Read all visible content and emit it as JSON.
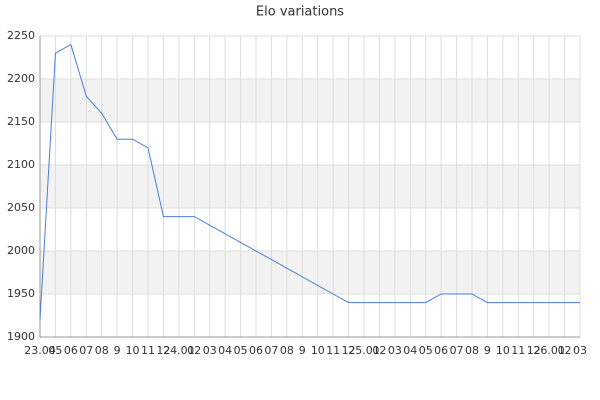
{
  "chart_data": {
    "type": "line",
    "title": "Elo variations",
    "categories": [
      "23.04",
      "05",
      "06",
      "07",
      "08",
      "9",
      "10",
      "11",
      "12",
      "24.01",
      "02",
      "03",
      "04",
      "05",
      "06",
      "07",
      "08",
      "9",
      "10",
      "11",
      "12",
      "25.01",
      "02",
      "03",
      "04",
      "05",
      "06",
      "07",
      "08",
      "9",
      "10",
      "11",
      "12",
      "26.01",
      "02",
      "03"
    ],
    "series": [
      {
        "name": "Elo",
        "color": "#4a7fd6",
        "values": [
          1920,
          2230,
          2240,
          2180,
          2160,
          2130,
          2130,
          2120,
          2040,
          2040,
          2040,
          2030,
          2020,
          2010,
          2000,
          1990,
          1980,
          1970,
          1960,
          1950,
          1940,
          1940,
          1940,
          1940,
          1940,
          1940,
          1950,
          1950,
          1950,
          1940,
          1940,
          1940,
          1940,
          1940,
          1940,
          1940
        ]
      }
    ],
    "ylim": [
      1900,
      2250
    ],
    "yticks": [
      1900,
      1950,
      2000,
      2050,
      2100,
      2150,
      2200,
      2250
    ],
    "grid": true
  }
}
